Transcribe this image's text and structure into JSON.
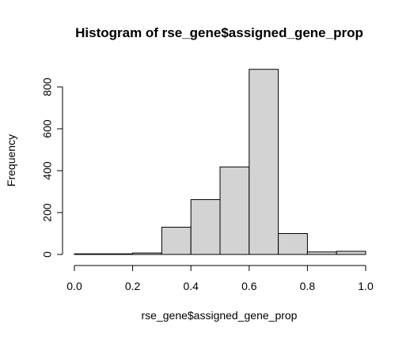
{
  "chart_data": {
    "type": "bar",
    "title": "Histogram of rse_gene$assigned_gene_prop",
    "xlabel": "rse_gene$assigned_gene_prop",
    "ylabel": "Frequency",
    "bins": [
      {
        "x0": 0.0,
        "x1": 0.1,
        "count": 3
      },
      {
        "x0": 0.1,
        "x1": 0.2,
        "count": 3
      },
      {
        "x0": 0.2,
        "x1": 0.3,
        "count": 7
      },
      {
        "x0": 0.3,
        "x1": 0.4,
        "count": 130
      },
      {
        "x0": 0.4,
        "x1": 0.5,
        "count": 262
      },
      {
        "x0": 0.5,
        "x1": 0.6,
        "count": 418
      },
      {
        "x0": 0.6,
        "x1": 0.7,
        "count": 884
      },
      {
        "x0": 0.7,
        "x1": 0.8,
        "count": 100
      },
      {
        "x0": 0.8,
        "x1": 0.9,
        "count": 12
      },
      {
        "x0": 0.9,
        "x1": 1.0,
        "count": 15
      }
    ],
    "xlim": [
      0.0,
      1.0
    ],
    "ylim": [
      0,
      884
    ],
    "x_ticks": [
      0.0,
      0.2,
      0.4,
      0.6,
      0.8,
      1.0
    ],
    "x_tick_labels": [
      "0.0",
      "0.2",
      "0.4",
      "0.6",
      "0.8",
      "1.0"
    ],
    "y_ticks": [
      0,
      200,
      400,
      600,
      800
    ],
    "y_tick_labels": [
      "0",
      "200",
      "400",
      "600",
      "800"
    ],
    "bar_color": "#d3d3d3",
    "grid": false,
    "legend": "none"
  }
}
